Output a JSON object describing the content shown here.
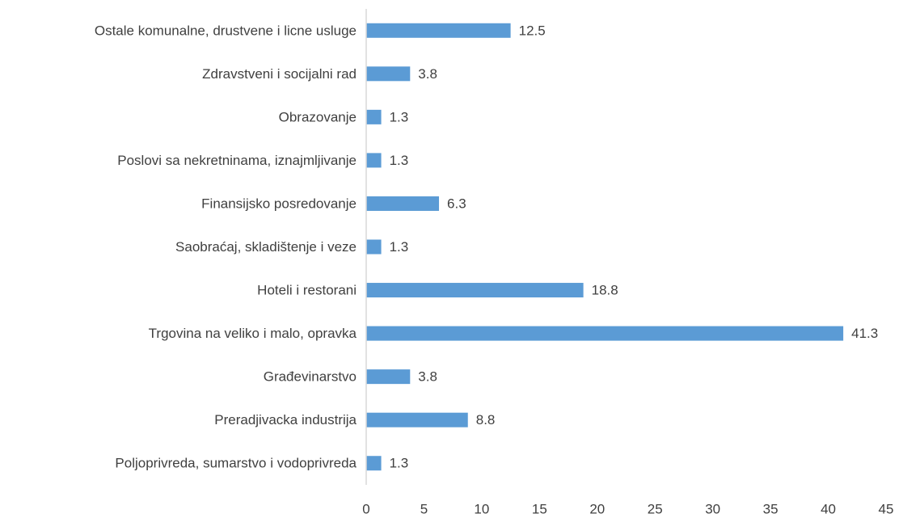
{
  "chart_data": {
    "type": "barh",
    "categories": [
      "Ostale komunalne, drustvene i licne usluge",
      "Zdravstveni i socijalni rad",
      "Obrazovanje",
      "Poslovi sa nekretninama, iznajmljivanje",
      "Finansijsko posredovanje",
      "Saobraćaj, skladištenje i veze",
      "Hoteli i restorani",
      "Trgovina na veliko i malo, opravka",
      "Građevinarstvo",
      "Preradjivacka industrija",
      "Poljoprivreda, sumarstvo i vodoprivreda"
    ],
    "values": [
      12.5,
      3.8,
      1.3,
      1.3,
      6.3,
      1.3,
      18.8,
      41.3,
      3.8,
      8.8,
      1.3
    ],
    "color": "#5b9bd5",
    "xlim": [
      0,
      45
    ],
    "xticks": [
      0,
      5,
      10,
      15,
      20,
      25,
      30,
      35,
      40,
      45
    ],
    "grid": false
  }
}
